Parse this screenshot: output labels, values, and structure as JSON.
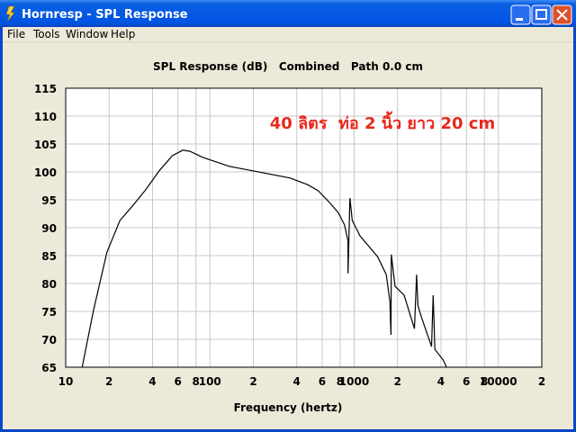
{
  "window": {
    "title": "Hornresp - SPL Response"
  },
  "menu": [
    "File",
    "Tools",
    "Window",
    "Help"
  ],
  "chart_data": {
    "type": "line",
    "title": "SPL Response (dB)   Combined   Path 0.0 cm",
    "annotation": "40 ลิตร  ท่อ 2 นิ้ว ยาว 20 cm",
    "x_label": "Frequency (hertz)",
    "x": [
      13.0,
      15.6,
      19.3,
      23.8,
      29.3,
      36.1,
      44.5,
      54.9,
      64.9,
      72.6,
      89.5,
      136,
      237,
      360,
      478,
      565,
      675,
      777,
      857,
      907,
      907,
      935,
      970,
      1100,
      1455,
      1670,
      1770,
      1800,
      1810,
      1920,
      2220,
      2620,
      2710,
      2770,
      2925,
      3440,
      3530,
      3630,
      4140,
      4370
    ],
    "values": [
      65,
      75.2,
      85.6,
      91.3,
      94.0,
      96.9,
      100.2,
      102.9,
      103.9,
      103.7,
      102.6,
      101,
      99.8,
      98.9,
      97.7,
      96.6,
      94.5,
      92.7,
      90.5,
      87.6,
      81.8,
      95.3,
      91.3,
      88.5,
      84.8,
      81.6,
      76.8,
      70.8,
      85.2,
      79.5,
      77.9,
      71.9,
      81.6,
      76,
      74,
      68.7,
      77.9,
      68.2,
      66.3,
      65
    ],
    "color": "#000000",
    "annotation_color": "#e8281e",
    "xscale": "log",
    "xlim": [
      10,
      20000
    ],
    "ylim": [
      65,
      115
    ],
    "xticks": [
      10,
      {
        "value": 20,
        "label": "2"
      },
      {
        "value": 40,
        "label": "4"
      },
      {
        "value": 60,
        "label": "6"
      },
      {
        "value": 80,
        "label": "8"
      },
      100,
      {
        "value": 200,
        "label": "2"
      },
      {
        "value": 400,
        "label": "4"
      },
      {
        "value": 600,
        "label": "6"
      },
      {
        "value": 800,
        "label": "8"
      },
      1000,
      {
        "value": 2000,
        "label": "2"
      },
      {
        "value": 4000,
        "label": "4"
      },
      {
        "value": 6000,
        "label": "6"
      },
      {
        "value": 8000,
        "label": "8"
      },
      10000,
      {
        "value": 20000,
        "label": "2"
      }
    ],
    "yticks": [
      65,
      70,
      75,
      80,
      85,
      90,
      95,
      100,
      105,
      110,
      115
    ],
    "grid": true
  }
}
